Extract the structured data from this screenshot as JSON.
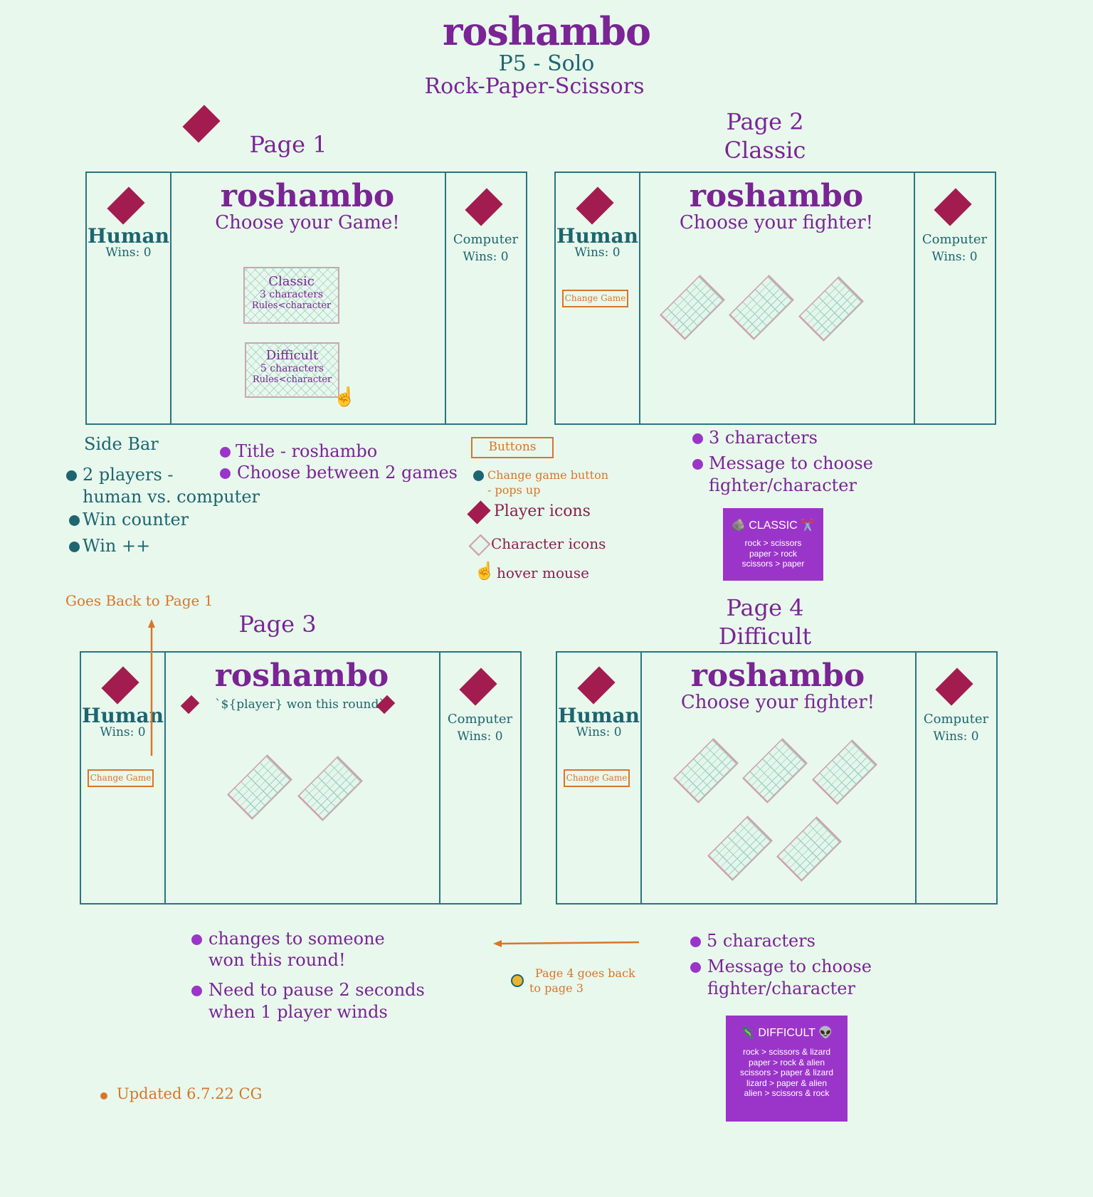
{
  "header": {
    "title": "roshambo",
    "subtitle1": "P5 - Solo",
    "subtitle2": "Rock-Paper-Scissors"
  },
  "pages": {
    "p1": "Page 1",
    "p2_line1": "Page 2",
    "p2_line2": "Classic",
    "p3": "Page 3",
    "p4_line1": "Page 4",
    "p4_line2": "Difficult"
  },
  "panel": {
    "title": "roshambo",
    "human": "Human",
    "wins": "Wins: 0",
    "computer": "Computer",
    "change_game": "Change Game",
    "choose_game": "Choose your Game!",
    "choose_fighter": "Choose your fighter!",
    "round_won": "`${player} won this round`"
  },
  "cards": {
    "classic": {
      "name": "Classic",
      "line1": "3 characters",
      "line2": "Rules<character"
    },
    "difficult": {
      "name": "Difficult",
      "line1": "5 characters",
      "line2": "Rules<character"
    }
  },
  "notes": {
    "sidebar_title": "Side Bar",
    "sidebar_1a": "2 players -",
    "sidebar_1b": "human vs. computer",
    "sidebar_2": "Win counter",
    "sidebar_3": "Win ++",
    "p1_1": "Title - roshambo",
    "p1_2": "Choose between 2 games",
    "buttons_label": "Buttons",
    "legend_change_a": "Change game button",
    "legend_change_b": "- pops up",
    "legend_player": "Player icons",
    "legend_char": "Character icons",
    "legend_hover": "hover mouse",
    "p2_1": "3 characters",
    "p2_2a": "Message to choose",
    "p2_2b": "fighter/character",
    "back_p1": "Goes Back to Page 1",
    "p3_1a": "changes to someone",
    "p3_1b": "won this round!",
    "p3_2a": "Need to pause 2 seconds",
    "p3_2b": "when 1 player winds",
    "p4back_a": "Page 4 goes back",
    "p4back_b": "to page 3",
    "p4_1": "5 characters",
    "p4_2a": "Message to choose",
    "p4_2b": "fighter/character",
    "updated": "Updated 6.7.22 CG"
  },
  "rules_classic": {
    "heading": "🪨 CLASSIC ✂️",
    "lines": [
      "rock > scissors",
      "paper > rock",
      "scissors > paper"
    ]
  },
  "rules_difficult": {
    "heading": "🦎 DIFFICULT 👽",
    "lines": [
      "rock > scissors & lizard",
      "paper > rock & alien",
      "scissors > paper & lizard",
      "lizard > paper & alien",
      "alien > scissors & rock"
    ]
  },
  "colors": {
    "background": "#e8f8ec",
    "purple": "#7a2495",
    "teal": "#1d6570",
    "orange": "#d9752a",
    "player_icon": "#a31c4f",
    "rule_box": "#9b35c9"
  }
}
